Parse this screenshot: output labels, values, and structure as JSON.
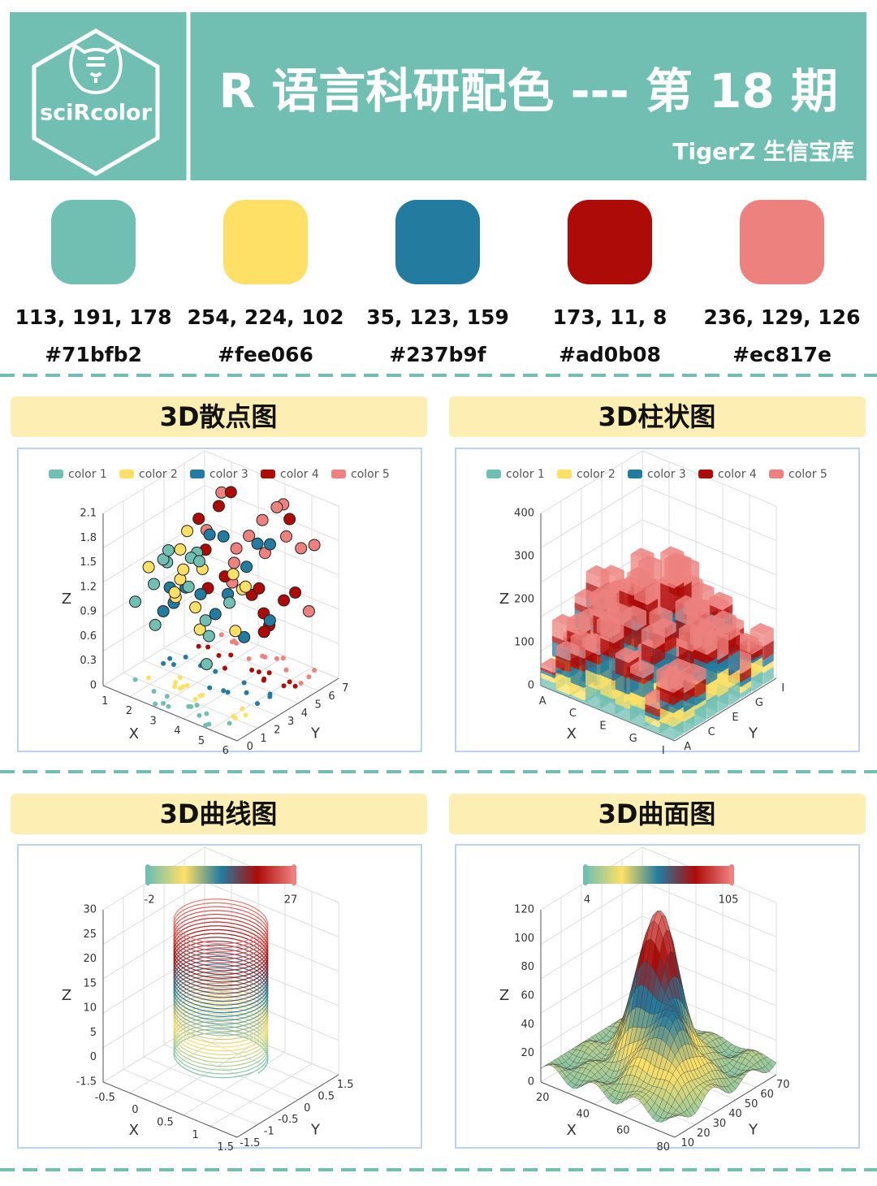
{
  "header": {
    "logo": "sciRcolor",
    "title": "R 语言科研配色 --- 第 18 期",
    "subtitle": "TigerZ 生信宝库"
  },
  "palette": [
    {
      "rgb": "113, 191, 178",
      "hex": "#71bfb2"
    },
    {
      "rgb": "254, 224, 102",
      "hex": "#fee066"
    },
    {
      "rgb": "35, 123, 159",
      "hex": "#237b9f"
    },
    {
      "rgb": "173, 11, 8",
      "hex": "#ad0b08"
    },
    {
      "rgb": "236, 129, 126",
      "hex": "#ec817e"
    }
  ],
  "panels": [
    {
      "title": "3D散点图",
      "kind": "scatter",
      "legend": [
        "color 1",
        "color 2",
        "color 3",
        "color 4",
        "color 5"
      ],
      "z_label": "Z",
      "x_label": "X",
      "y_label": "Y",
      "z_ticks": [
        "0",
        "0.3",
        "0.6",
        "0.9",
        "1.2",
        "1.5",
        "1.8",
        "2.1"
      ],
      "x_ticks": [
        "1",
        "2",
        "3",
        "4",
        "5",
        "6"
      ],
      "y_ticks": [
        "0",
        "1",
        "2",
        "3",
        "4",
        "5",
        "6",
        "7"
      ]
    },
    {
      "title": "3D柱状图",
      "kind": "bar",
      "legend": [
        "color 1",
        "color 2",
        "color 3",
        "color 4",
        "color 5"
      ],
      "z_label": "Z",
      "x_label": "X",
      "y_label": "Y",
      "z_ticks": [
        "0",
        "100",
        "200",
        "300",
        "400"
      ],
      "x_ticks": [
        "A",
        "C",
        "E",
        "G",
        "I"
      ],
      "y_ticks": [
        "A",
        "C",
        "E",
        "G",
        "I"
      ]
    },
    {
      "title": "3D曲线图",
      "kind": "curve",
      "colorbar": [
        "-2",
        "27"
      ],
      "z_label": "Z",
      "x_label": "X",
      "y_label": "Y",
      "z_ticks": [
        "-1.5",
        "0",
        "5",
        "10",
        "15",
        "20",
        "25",
        "30"
      ],
      "x_ticks": [
        "-0.5",
        "0",
        "0.5",
        "1",
        "1.5"
      ],
      "y_ticks": [
        "-1.5",
        "-1",
        "-0.5",
        "0",
        "0.5",
        "1.5"
      ]
    },
    {
      "title": "3D曲面图",
      "kind": "surface",
      "colorbar": [
        "4",
        "105"
      ],
      "z_label": "Z",
      "x_label": "X",
      "y_label": "Y",
      "z_ticks": [
        "0",
        "20",
        "40",
        "60",
        "80",
        "100",
        "120"
      ],
      "x_ticks": [
        "20",
        "40",
        "60",
        "80"
      ],
      "y_ticks": [
        "10",
        "20",
        "30",
        "40",
        "50",
        "60",
        "70"
      ]
    }
  ]
}
